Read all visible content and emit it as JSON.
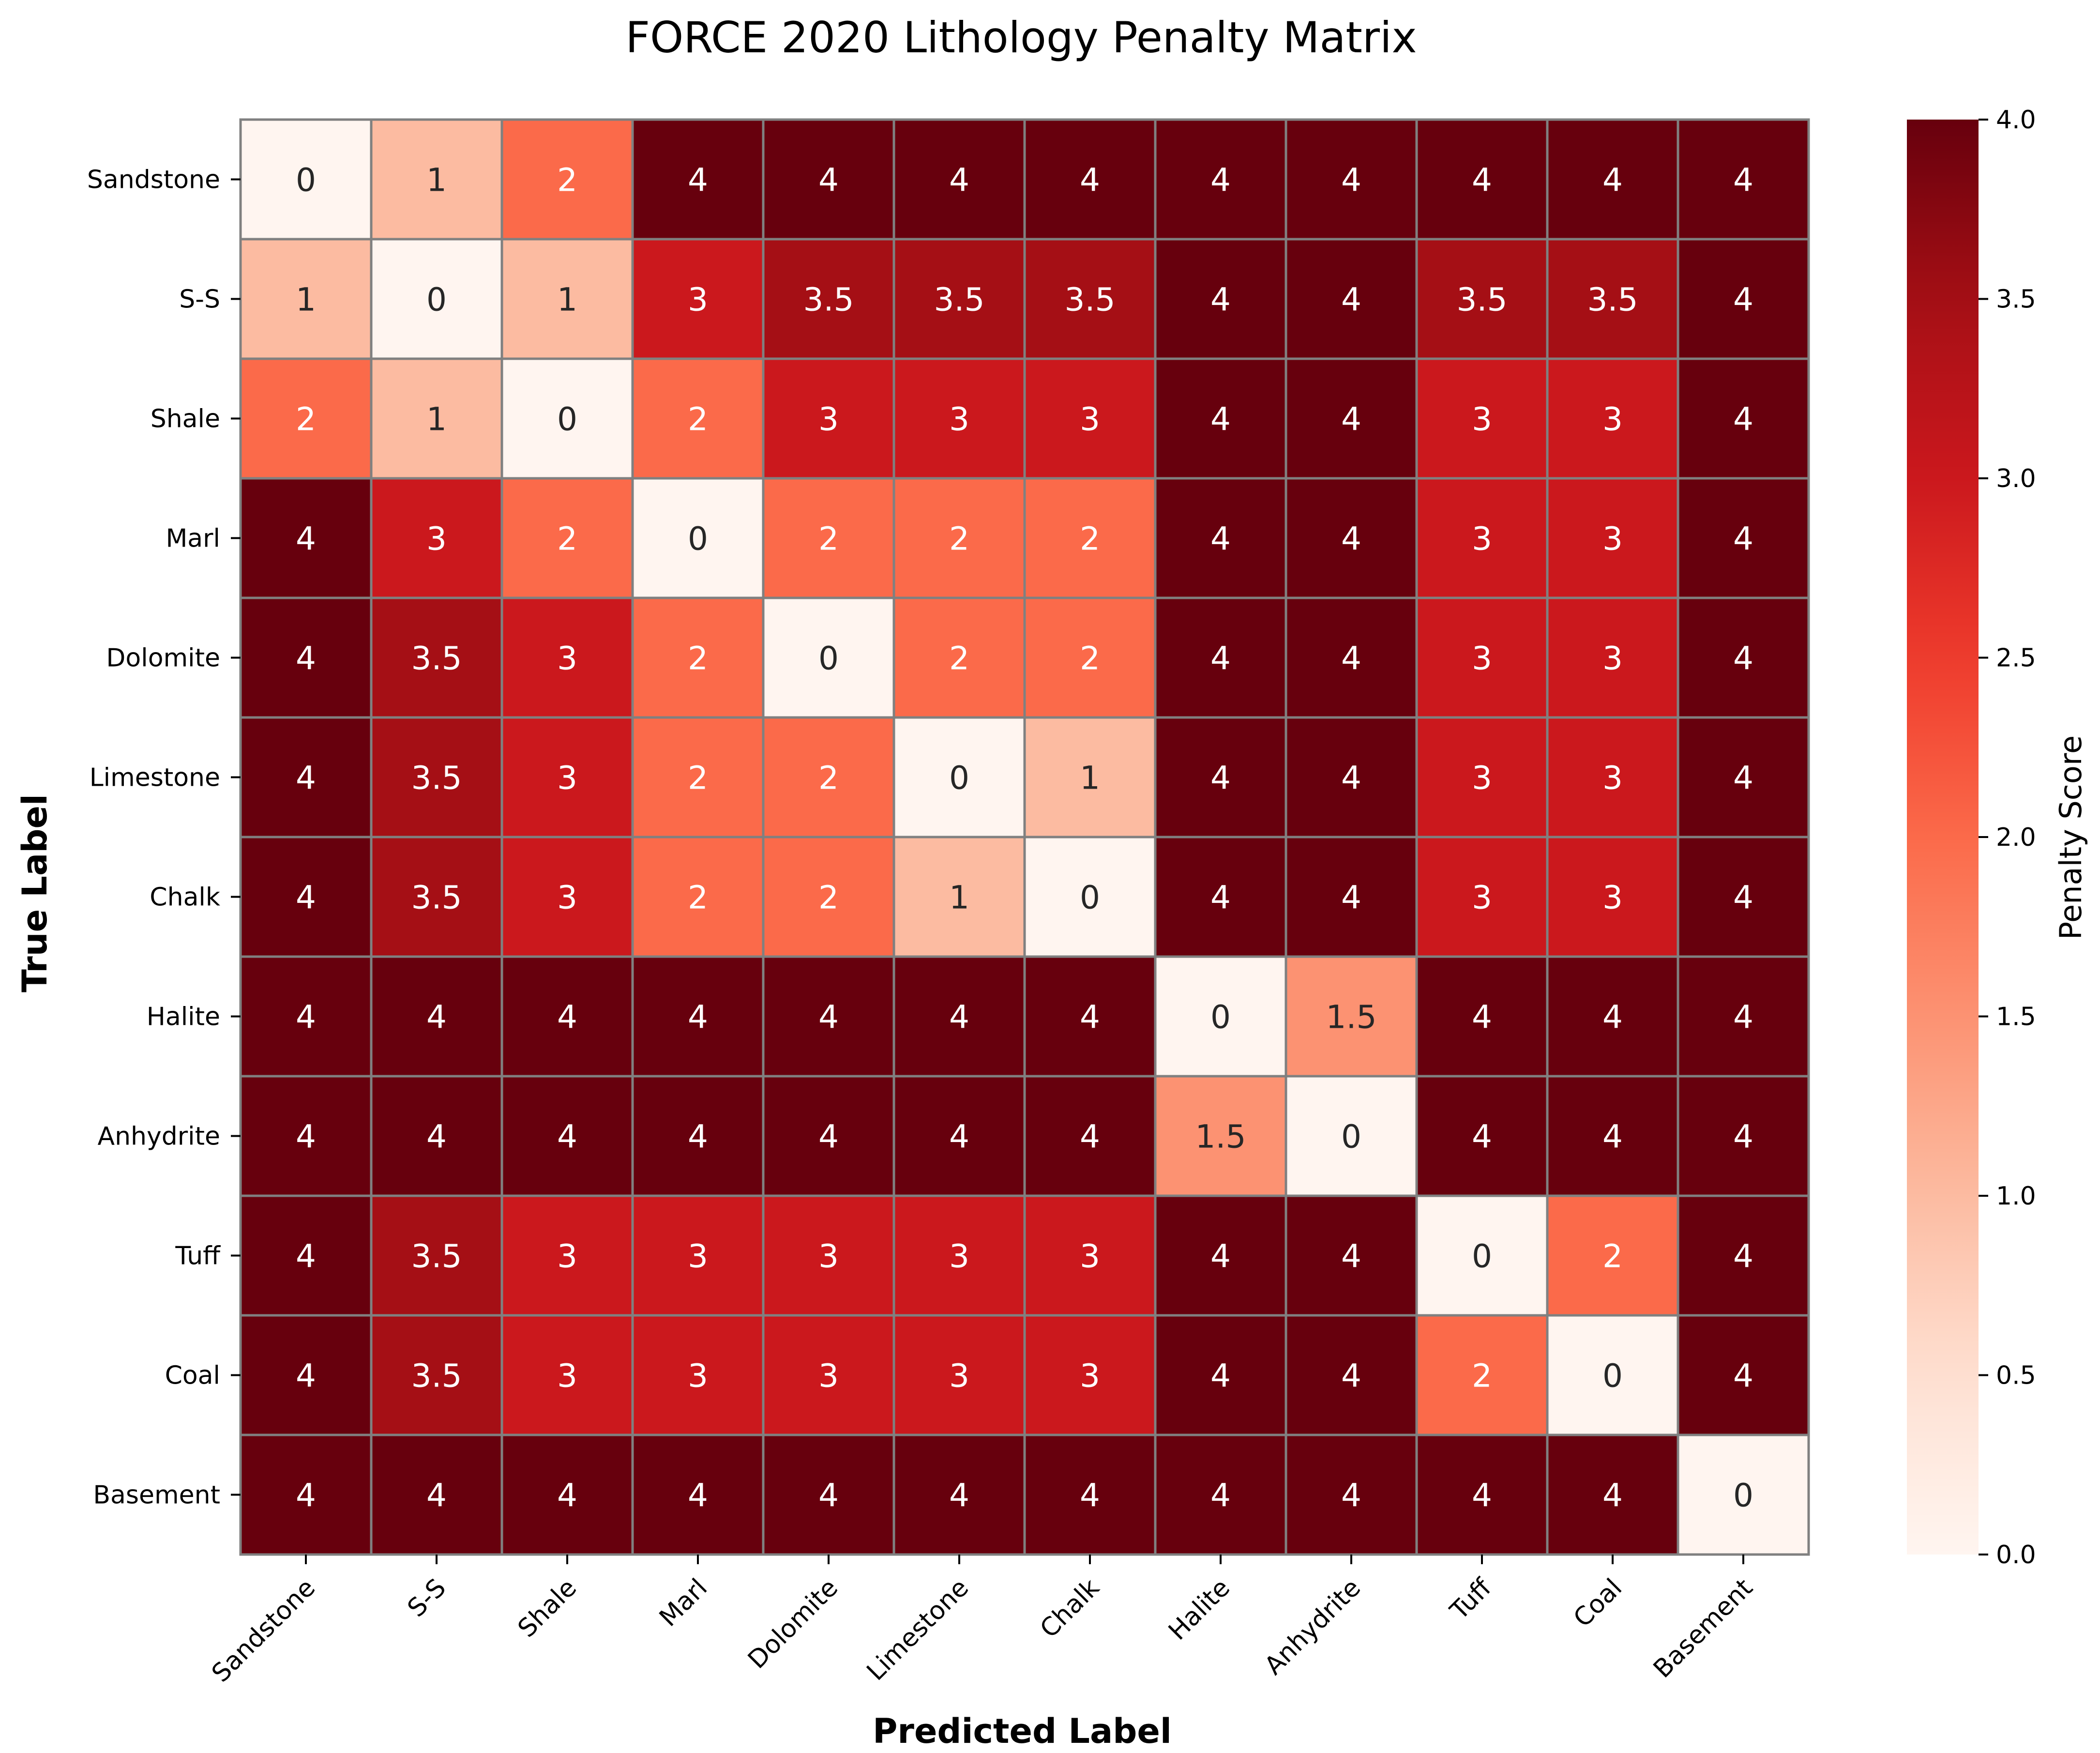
{
  "chart_data": {
    "type": "heatmap",
    "title": "FORCE 2020 Lithology Penalty Matrix",
    "xlabel": "Predicted Label",
    "ylabel": "True Label",
    "x_categories": [
      "Sandstone",
      "S-S",
      "Shale",
      "Marl",
      "Dolomite",
      "Limestone",
      "Chalk",
      "Halite",
      "Anhydrite",
      "Tuff",
      "Coal",
      "Basement"
    ],
    "y_categories": [
      "Sandstone",
      "S-S",
      "Shale",
      "Marl",
      "Dolomite",
      "Limestone",
      "Chalk",
      "Halite",
      "Anhydrite",
      "Tuff",
      "Coal",
      "Basement"
    ],
    "values": [
      [
        0,
        1,
        2,
        4,
        4,
        4,
        4,
        4,
        4,
        4,
        4,
        4
      ],
      [
        1,
        0,
        1,
        3,
        3.5,
        3.5,
        3.5,
        4,
        4,
        3.5,
        3.5,
        4
      ],
      [
        2,
        1,
        0,
        2,
        3,
        3,
        3,
        4,
        4,
        3,
        3,
        4
      ],
      [
        4,
        3,
        2,
        0,
        2,
        2,
        2,
        4,
        4,
        3,
        3,
        4
      ],
      [
        4,
        3.5,
        3,
        2,
        0,
        2,
        2,
        4,
        4,
        3,
        3,
        4
      ],
      [
        4,
        3.5,
        3,
        2,
        2,
        0,
        1,
        4,
        4,
        3,
        3,
        4
      ],
      [
        4,
        3.5,
        3,
        2,
        2,
        1,
        0,
        4,
        4,
        3,
        3,
        4
      ],
      [
        4,
        4,
        4,
        4,
        4,
        4,
        4,
        0,
        1.5,
        4,
        4,
        4
      ],
      [
        4,
        4,
        4,
        4,
        4,
        4,
        4,
        1.5,
        0,
        4,
        4,
        4
      ],
      [
        4,
        3.5,
        3,
        3,
        3,
        3,
        3,
        4,
        4,
        0,
        2,
        4
      ],
      [
        4,
        3.5,
        3,
        3,
        3,
        3,
        3,
        4,
        4,
        2,
        0,
        4
      ],
      [
        4,
        4,
        4,
        4,
        4,
        4,
        4,
        4,
        4,
        4,
        4,
        0
      ]
    ],
    "colorbar": {
      "label": "Penalty Score",
      "range": [
        0,
        4
      ],
      "ticks": [
        "0.0",
        "0.5",
        "1.0",
        "1.5",
        "2.0",
        "2.5",
        "3.0",
        "3.5",
        "4.0"
      ],
      "colormap": "Reds"
    },
    "grid": true,
    "cell_border_color": "#808080"
  }
}
